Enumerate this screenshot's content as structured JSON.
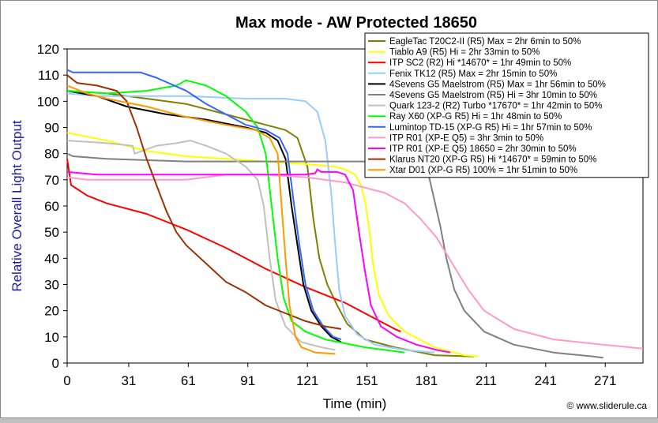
{
  "chart_data": {
    "type": "line",
    "title": "Max mode - AW Protected 18650",
    "xlabel": "Time (min)",
    "ylabel": "Relative Overall Light Output",
    "xlim": [
      0,
      290
    ],
    "ylim": [
      0,
      120
    ],
    "x_ticks": [
      0,
      31,
      61,
      91,
      121,
      151,
      181,
      211,
      241,
      271
    ],
    "y_ticks": [
      0,
      10,
      20,
      30,
      40,
      50,
      60,
      70,
      80,
      90,
      100,
      110,
      120
    ],
    "grid": false,
    "legend_position": "top-right",
    "watermark": "© www.sliderule.ca",
    "series": [
      {
        "name": "EagleTac T20C2-II (R5) Max = 2hr 6min to 50%",
        "color": "#808000",
        "points": [
          [
            0,
            104
          ],
          [
            20,
            103
          ],
          [
            40,
            101
          ],
          [
            60,
            99
          ],
          [
            80,
            95
          ],
          [
            100,
            91
          ],
          [
            110,
            89
          ],
          [
            116,
            86
          ],
          [
            121,
            75
          ],
          [
            124,
            55
          ],
          [
            127,
            40
          ],
          [
            131,
            30
          ],
          [
            136,
            22
          ],
          [
            141,
            15
          ],
          [
            150,
            9
          ],
          [
            165,
            6
          ],
          [
            185,
            3
          ],
          [
            205,
            2.5
          ]
        ]
      },
      {
        "name": "Tiablo A9 (R5) Hi = 2hr 33min to 50%",
        "color": "#ffff00",
        "points": [
          [
            0,
            88
          ],
          [
            20,
            85
          ],
          [
            40,
            81
          ],
          [
            60,
            79
          ],
          [
            80,
            78
          ],
          [
            100,
            77
          ],
          [
            120,
            76
          ],
          [
            135,
            75
          ],
          [
            140,
            74
          ],
          [
            145,
            72
          ],
          [
            148,
            68
          ],
          [
            150,
            62
          ],
          [
            152,
            52
          ],
          [
            154,
            38
          ],
          [
            157,
            26
          ],
          [
            162,
            18
          ],
          [
            170,
            12
          ],
          [
            185,
            6
          ],
          [
            200,
            3
          ],
          [
            207,
            2.5
          ]
        ]
      },
      {
        "name": "ITP SC2 (R2) Hi *14670* = 1hr 49min to 50%",
        "color": "#ff0000",
        "points": [
          [
            0,
            78
          ],
          [
            2,
            68
          ],
          [
            10,
            64
          ],
          [
            20,
            61
          ],
          [
            40,
            57
          ],
          [
            60,
            51
          ],
          [
            80,
            44
          ],
          [
            100,
            36
          ],
          [
            120,
            29
          ],
          [
            140,
            23
          ],
          [
            155,
            17
          ],
          [
            165,
            13
          ],
          [
            168,
            12
          ]
        ]
      },
      {
        "name": "Fenix TK12 (R5) Max = 2hr 15min to 50%",
        "color": "#99ccff",
        "points": [
          [
            0,
            103
          ],
          [
            15,
            102
          ],
          [
            30,
            102
          ],
          [
            60,
            102
          ],
          [
            90,
            101
          ],
          [
            110,
            101
          ],
          [
            120,
            100
          ],
          [
            126,
            96
          ],
          [
            130,
            85
          ],
          [
            133,
            65
          ],
          [
            135,
            45
          ],
          [
            137,
            28
          ],
          [
            140,
            18
          ],
          [
            146,
            11
          ],
          [
            155,
            7
          ],
          [
            170,
            5
          ],
          [
            185,
            4
          ]
        ]
      },
      {
        "name": "4Sevens G5 Maelstrom (R5) Max = 1hr 56min to 50%",
        "color": "#000000",
        "points": [
          [
            0,
            104
          ],
          [
            15,
            102
          ],
          [
            30,
            98
          ],
          [
            50,
            95
          ],
          [
            70,
            93
          ],
          [
            90,
            90
          ],
          [
            100,
            88
          ],
          [
            106,
            85
          ],
          [
            110,
            78
          ],
          [
            113,
            60
          ],
          [
            116,
            45
          ],
          [
            119,
            30
          ],
          [
            123,
            20
          ],
          [
            128,
            14
          ],
          [
            133,
            10
          ],
          [
            138,
            8
          ]
        ]
      },
      {
        "name": "4Sevens G5 Maelstrom (R5) Hi = 3hr 10min to 50%",
        "color": "#808080",
        "points": [
          [
            0,
            80
          ],
          [
            3,
            79
          ],
          [
            20,
            78
          ],
          [
            60,
            77
          ],
          [
            100,
            77
          ],
          [
            130,
            77
          ],
          [
            150,
            77
          ],
          [
            170,
            77
          ],
          [
            178,
            76
          ],
          [
            182,
            72
          ],
          [
            185,
            62
          ],
          [
            188,
            52
          ],
          [
            191,
            40
          ],
          [
            195,
            28
          ],
          [
            200,
            20
          ],
          [
            210,
            12
          ],
          [
            225,
            7
          ],
          [
            245,
            4
          ],
          [
            265,
            2.5
          ],
          [
            270,
            2
          ]
        ]
      },
      {
        "name": "Quark 123-2 (R2) Turbo *17670* = 1hr 42min to 50%",
        "color": "#c0c0c0",
        "points": [
          [
            0,
            85
          ],
          [
            20,
            84
          ],
          [
            33,
            83
          ],
          [
            34,
            80
          ],
          [
            45,
            83
          ],
          [
            55,
            84
          ],
          [
            62,
            85
          ],
          [
            70,
            83
          ],
          [
            80,
            80
          ],
          [
            90,
            75
          ],
          [
            96,
            70
          ],
          [
            99,
            60
          ],
          [
            102,
            40
          ],
          [
            105,
            24
          ],
          [
            110,
            14
          ],
          [
            118,
            8
          ],
          [
            128,
            6
          ],
          [
            135,
            5
          ]
        ]
      },
      {
        "name": "Ray X60 (XP-G R5) Hi = 1hr 48min to 50%",
        "color": "#00ff00",
        "points": [
          [
            0,
            104
          ],
          [
            20,
            103
          ],
          [
            40,
            104
          ],
          [
            55,
            106
          ],
          [
            60,
            108
          ],
          [
            70,
            106
          ],
          [
            80,
            102
          ],
          [
            90,
            96
          ],
          [
            96,
            90
          ],
          [
            100,
            80
          ],
          [
            103,
            60
          ],
          [
            106,
            40
          ],
          [
            109,
            25
          ],
          [
            113,
            16
          ],
          [
            120,
            12
          ],
          [
            130,
            9
          ],
          [
            150,
            6
          ],
          [
            170,
            4
          ]
        ]
      },
      {
        "name": "Lumintop TD-15 (XP-G R5) Hi = 1hr 57min to 50%",
        "color": "#3366ff",
        "points": [
          [
            0,
            112
          ],
          [
            3,
            111
          ],
          [
            15,
            111
          ],
          [
            37,
            111
          ],
          [
            45,
            109
          ],
          [
            60,
            104
          ],
          [
            70,
            99
          ],
          [
            80,
            95
          ],
          [
            90,
            91
          ],
          [
            100,
            89
          ],
          [
            107,
            86
          ],
          [
            111,
            80
          ],
          [
            114,
            62
          ],
          [
            117,
            45
          ],
          [
            120,
            30
          ],
          [
            124,
            20
          ],
          [
            129,
            14
          ],
          [
            134,
            10
          ],
          [
            138,
            9
          ]
        ]
      },
      {
        "name": "ITP R01 (XP-E Q5) = 3hr 3min to 50%",
        "color": "#ff99cc",
        "points": [
          [
            0,
            71
          ],
          [
            10,
            70
          ],
          [
            30,
            70
          ],
          [
            60,
            70
          ],
          [
            70,
            71
          ],
          [
            80,
            72
          ],
          [
            100,
            72
          ],
          [
            120,
            71
          ],
          [
            140,
            69
          ],
          [
            160,
            65
          ],
          [
            170,
            61
          ],
          [
            178,
            55
          ],
          [
            186,
            48
          ],
          [
            194,
            38
          ],
          [
            202,
            28
          ],
          [
            210,
            20
          ],
          [
            225,
            13
          ],
          [
            245,
            9
          ],
          [
            270,
            7
          ],
          [
            290,
            5.5
          ]
        ]
      },
      {
        "name": "ITP R01 (XP-E Q5) 18650 = 2hr 30min to 50%",
        "color": "#ff00ff",
        "points": [
          [
            0,
            73
          ],
          [
            15,
            72
          ],
          [
            40,
            72
          ],
          [
            70,
            72
          ],
          [
            100,
            72
          ],
          [
            120,
            72
          ],
          [
            125,
            72.5
          ],
          [
            126,
            74
          ],
          [
            128,
            73
          ],
          [
            136,
            73
          ],
          [
            140,
            72
          ],
          [
            144,
            66
          ],
          [
            147,
            50
          ],
          [
            150,
            35
          ],
          [
            153,
            22
          ],
          [
            158,
            14
          ],
          [
            166,
            10
          ],
          [
            176,
            7
          ],
          [
            186,
            5
          ],
          [
            193,
            4
          ]
        ]
      },
      {
        "name": "Klarus NT20 (XP-G R5) Hi *14670* = 59min to 50%",
        "color": "#993300",
        "points": [
          [
            0,
            110
          ],
          [
            5,
            107
          ],
          [
            15,
            106
          ],
          [
            25,
            104
          ],
          [
            30,
            100
          ],
          [
            35,
            90
          ],
          [
            40,
            78
          ],
          [
            45,
            68
          ],
          [
            50,
            58
          ],
          [
            55,
            50
          ],
          [
            60,
            45
          ],
          [
            70,
            38
          ],
          [
            80,
            31
          ],
          [
            90,
            27
          ],
          [
            100,
            22
          ],
          [
            110,
            19
          ],
          [
            120,
            16
          ],
          [
            130,
            14
          ],
          [
            138,
            13
          ]
        ]
      },
      {
        "name": "Xtar D01 (XP-G R5) 100% = 1hr 51min to 50%",
        "color": "#ff9900",
        "points": [
          [
            0,
            106
          ],
          [
            10,
            103
          ],
          [
            20,
            101
          ],
          [
            40,
            98
          ],
          [
            60,
            94
          ],
          [
            80,
            91
          ],
          [
            95,
            89
          ],
          [
            102,
            86
          ],
          [
            106,
            80
          ],
          [
            108,
            60
          ],
          [
            110,
            40
          ],
          [
            112,
            22
          ],
          [
            115,
            10
          ],
          [
            118,
            6
          ],
          [
            125,
            4
          ],
          [
            135,
            3.5
          ]
        ]
      }
    ]
  }
}
